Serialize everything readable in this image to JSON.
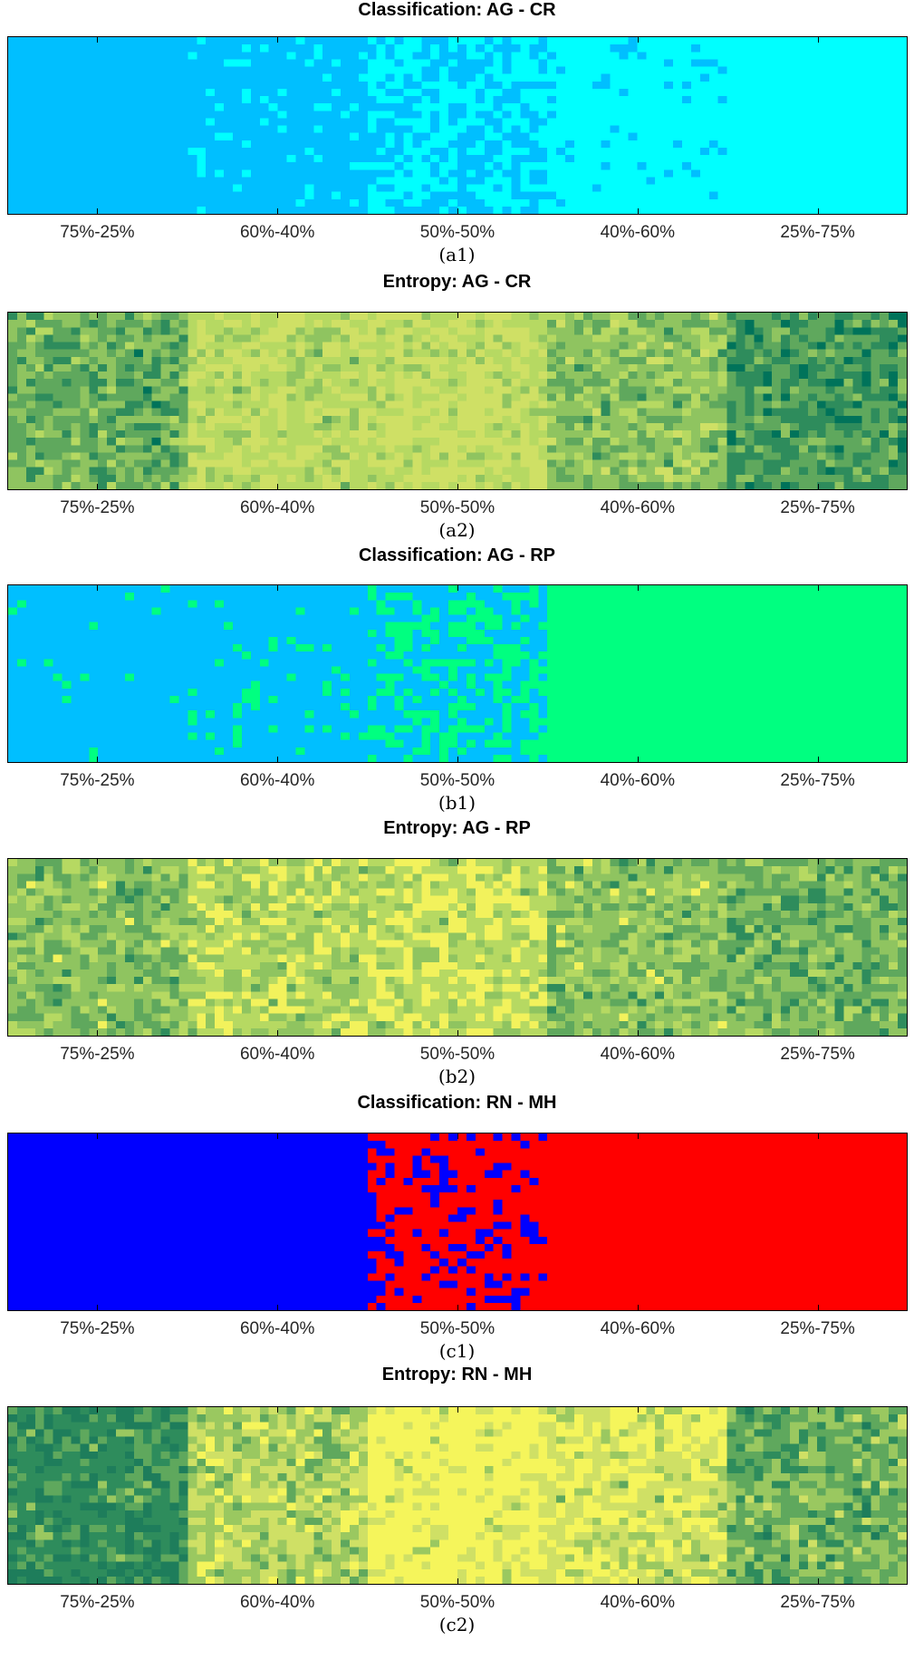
{
  "chart_data": [
    {
      "type": "heatmap",
      "id": "a1",
      "title": "Classification: AG - CR",
      "caption": "(a1)",
      "categories": [
        "75%-25%",
        "60%-40%",
        "50%-50%",
        "40%-60%",
        "25%-75%"
      ],
      "colors": [
        "#00BFFF",
        "#00FFFF"
      ],
      "values": [
        0.0,
        0.1,
        0.5,
        0.9,
        1.0
      ]
    },
    {
      "type": "heatmap",
      "id": "a2",
      "title": "Entropy: AG - CR",
      "caption": "(a2)",
      "categories": [
        "75%-25%",
        "60%-40%",
        "50%-50%",
        "40%-60%",
        "25%-75%"
      ],
      "colors": [
        "#00735A",
        "#2E8C5C",
        "#5FA85D",
        "#8FC460",
        "#B6D962",
        "#CFE065"
      ],
      "values": [
        0.45,
        0.85,
        0.9,
        0.6,
        0.3
      ]
    },
    {
      "type": "heatmap",
      "id": "b1",
      "title": "Classification: AG - RP",
      "caption": "(b1)",
      "categories": [
        "75%-25%",
        "60%-40%",
        "50%-50%",
        "40%-60%",
        "25%-75%"
      ],
      "colors": [
        "#00BFFF",
        "#00FF80"
      ],
      "values": [
        0.03,
        0.12,
        0.45,
        1.0,
        1.0
      ]
    },
    {
      "type": "heatmap",
      "id": "b2",
      "title": "Entropy: AG - RP",
      "caption": "(b2)",
      "categories": [
        "75%-25%",
        "60%-40%",
        "50%-50%",
        "40%-60%",
        "25%-75%"
      ],
      "colors": [
        "#2E8C5C",
        "#5FA85D",
        "#8FC460",
        "#B6D962",
        "#F2F25C"
      ],
      "values": [
        0.45,
        0.7,
        0.8,
        0.5,
        0.35
      ]
    },
    {
      "type": "heatmap",
      "id": "c1",
      "title": "Classification: RN - MH",
      "caption": "(c1)",
      "categories": [
        "75%-25%",
        "60%-40%",
        "50%-50%",
        "40%-60%",
        "25%-75%"
      ],
      "colors": [
        "#0000FF",
        "#FF0000"
      ],
      "values": [
        0.0,
        0.0,
        0.75,
        1.0,
        1.0
      ]
    },
    {
      "type": "heatmap",
      "id": "c2",
      "title": "Entropy: RN - MH",
      "caption": "(c2)",
      "categories": [
        "75%-25%",
        "60%-40%",
        "50%-50%",
        "40%-60%",
        "25%-75%"
      ],
      "colors": [
        "#1E7D5B",
        "#2E8C5C",
        "#5FA85D",
        "#9AC860",
        "#CFE065",
        "#F5F55B"
      ],
      "values": [
        0.2,
        0.7,
        1.0,
        0.85,
        0.45
      ]
    }
  ]
}
